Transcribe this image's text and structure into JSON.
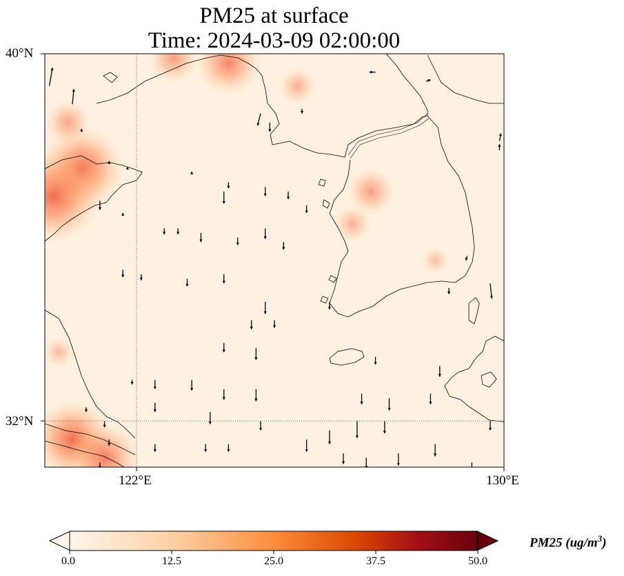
{
  "title": {
    "line1": "PM25 at surface",
    "line2": "Time: 2024-03-09 02:00:00"
  },
  "axes": {
    "lat_labels": [
      "40°N",
      "32°N"
    ],
    "lon_labels": [
      "122°E",
      "130°E"
    ],
    "lat_range": [
      31,
      40
    ],
    "lon_range": [
      120,
      130
    ],
    "gridlines": {
      "lat": 32,
      "lon": 122
    }
  },
  "colorbar": {
    "title": "PM25 (ug/m",
    "title_sup": "3",
    "title_close": ")",
    "ticks": [
      "0.0",
      "12.5",
      "25.0",
      "37.5",
      "50.0"
    ],
    "range": [
      0,
      50
    ],
    "colors": [
      "#fff5eb",
      "#fdd1a5",
      "#fd8d3c",
      "#d94801",
      "#a50f15",
      "#67000d"
    ]
  },
  "map": {
    "background_color": "#fff1e1",
    "pm25_hotspots": [
      {
        "lon": 120.8,
        "lat": 37.5,
        "value": 28
      },
      {
        "lon": 120.2,
        "lat": 36.9,
        "value": 32
      },
      {
        "lon": 120.5,
        "lat": 38.5,
        "value": 12
      },
      {
        "lon": 124.0,
        "lat": 39.8,
        "value": 20
      },
      {
        "lon": 122.8,
        "lat": 39.9,
        "value": 14
      },
      {
        "lon": 127.1,
        "lat": 37.0,
        "value": 13
      },
      {
        "lon": 126.7,
        "lat": 36.3,
        "value": 9
      },
      {
        "lon": 120.6,
        "lat": 31.6,
        "value": 26
      },
      {
        "lon": 121.3,
        "lat": 31.2,
        "value": 22
      },
      {
        "lon": 125.5,
        "lat": 39.3,
        "value": 9
      },
      {
        "lon": 120.3,
        "lat": 33.5,
        "value": 6
      },
      {
        "lon": 128.5,
        "lat": 35.5,
        "value": 5
      }
    ],
    "wind_vectors": [
      {
        "lon": 120.1,
        "lat": 39.3,
        "u": 0.2,
        "v": 1.2
      },
      {
        "lon": 120.6,
        "lat": 38.9,
        "u": 0.1,
        "v": 1.0
      },
      {
        "lon": 127.2,
        "lat": 39.6,
        "u": -0.4,
        "v": 0.0
      },
      {
        "lon": 128.3,
        "lat": 39.4,
        "u": 0.3,
        "v": 0.1
      },
      {
        "lon": 124.7,
        "lat": 38.7,
        "u": -0.2,
        "v": -0.8
      },
      {
        "lon": 124.9,
        "lat": 38.5,
        "u": 0.0,
        "v": -0.6
      },
      {
        "lon": 125.6,
        "lat": 38.8,
        "u": 0.0,
        "v": -0.3
      },
      {
        "lon": 120.8,
        "lat": 38.3,
        "u": 0.0,
        "v": 0.2
      },
      {
        "lon": 121.4,
        "lat": 37.6,
        "u": 0.0,
        "v": 0.2
      },
      {
        "lon": 129.9,
        "lat": 38.1,
        "u": 0.1,
        "v": 0.5
      },
      {
        "lon": 129.9,
        "lat": 37.9,
        "u": 0.0,
        "v": 0.4
      },
      {
        "lon": 121.8,
        "lat": 37.5,
        "u": 0.0,
        "v": 0.1
      },
      {
        "lon": 123.2,
        "lat": 37.4,
        "u": 0.0,
        "v": 0.1
      },
      {
        "lon": 124.0,
        "lat": 37.2,
        "u": 0.0,
        "v": -0.4
      },
      {
        "lon": 124.8,
        "lat": 37.1,
        "u": 0.0,
        "v": -0.6
      },
      {
        "lon": 125.3,
        "lat": 37.0,
        "u": 0.0,
        "v": -0.5
      },
      {
        "lon": 125.7,
        "lat": 36.7,
        "u": 0.0,
        "v": -0.5
      },
      {
        "lon": 123.9,
        "lat": 37.0,
        "u": 0.0,
        "v": -0.8
      },
      {
        "lon": 121.2,
        "lat": 36.8,
        "u": 0.0,
        "v": -0.6
      },
      {
        "lon": 121.7,
        "lat": 36.5,
        "u": 0.0,
        "v": 0.1
      },
      {
        "lon": 122.6,
        "lat": 36.2,
        "u": 0.0,
        "v": -0.4
      },
      {
        "lon": 122.9,
        "lat": 36.2,
        "u": 0.0,
        "v": -0.4
      },
      {
        "lon": 123.4,
        "lat": 36.1,
        "u": 0.0,
        "v": -0.6
      },
      {
        "lon": 124.2,
        "lat": 36.0,
        "u": 0.0,
        "v": -0.5
      },
      {
        "lon": 124.8,
        "lat": 36.2,
        "u": 0.0,
        "v": -0.7
      },
      {
        "lon": 125.2,
        "lat": 35.9,
        "u": 0.0,
        "v": -0.5
      },
      {
        "lon": 129.2,
        "lat": 35.6,
        "u": -0.1,
        "v": -0.3
      },
      {
        "lon": 121.7,
        "lat": 35.3,
        "u": 0.0,
        "v": -0.5
      },
      {
        "lon": 122.1,
        "lat": 35.2,
        "u": 0.0,
        "v": -0.4
      },
      {
        "lon": 123.1,
        "lat": 35.1,
        "u": 0.0,
        "v": -0.5
      },
      {
        "lon": 123.9,
        "lat": 35.2,
        "u": 0.0,
        "v": -0.6
      },
      {
        "lon": 124.8,
        "lat": 34.6,
        "u": 0.0,
        "v": -0.8
      },
      {
        "lon": 126.2,
        "lat": 34.6,
        "u": 0.0,
        "v": -0.5
      },
      {
        "lon": 128.8,
        "lat": 34.9,
        "u": 0.0,
        "v": -0.4
      },
      {
        "lon": 129.7,
        "lat": 35.0,
        "u": 0.1,
        "v": -1.0
      },
      {
        "lon": 124.5,
        "lat": 34.2,
        "u": 0.0,
        "v": -0.6
      },
      {
        "lon": 125.0,
        "lat": 34.2,
        "u": 0.0,
        "v": -0.5
      },
      {
        "lon": 123.9,
        "lat": 33.7,
        "u": 0.0,
        "v": -0.6
      },
      {
        "lon": 124.6,
        "lat": 33.6,
        "u": 0.0,
        "v": -0.8
      },
      {
        "lon": 127.2,
        "lat": 33.4,
        "u": 0.0,
        "v": -0.5
      },
      {
        "lon": 128.6,
        "lat": 33.2,
        "u": 0.0,
        "v": -0.7
      },
      {
        "lon": 121.9,
        "lat": 32.9,
        "u": 0.0,
        "v": -0.3
      },
      {
        "lon": 122.4,
        "lat": 32.9,
        "u": 0.0,
        "v": -0.6
      },
      {
        "lon": 123.2,
        "lat": 32.9,
        "u": 0.0,
        "v": -0.7
      },
      {
        "lon": 123.9,
        "lat": 32.7,
        "u": 0.0,
        "v": -0.7
      },
      {
        "lon": 124.6,
        "lat": 32.7,
        "u": 0.0,
        "v": -0.8
      },
      {
        "lon": 126.9,
        "lat": 32.6,
        "u": 0.0,
        "v": -0.7
      },
      {
        "lon": 127.5,
        "lat": 32.5,
        "u": 0.0,
        "v": -0.8
      },
      {
        "lon": 128.4,
        "lat": 32.6,
        "u": 0.0,
        "v": -0.7
      },
      {
        "lon": 122.4,
        "lat": 32.4,
        "u": 0.0,
        "v": -0.6
      },
      {
        "lon": 120.9,
        "lat": 32.3,
        "u": 0.0,
        "v": -0.3
      },
      {
        "lon": 121.3,
        "lat": 32.0,
        "u": 0.0,
        "v": -0.4
      },
      {
        "lon": 123.6,
        "lat": 32.2,
        "u": 0.0,
        "v": -0.8
      },
      {
        "lon": 124.7,
        "lat": 32.0,
        "u": 0.0,
        "v": -0.6
      },
      {
        "lon": 126.8,
        "lat": 32.0,
        "u": 0.0,
        "v": -1.1
      },
      {
        "lon": 127.4,
        "lat": 32.0,
        "u": 0.0,
        "v": -0.8
      },
      {
        "lon": 129.7,
        "lat": 32.0,
        "u": 0.0,
        "v": -0.6
      },
      {
        "lon": 121.4,
        "lat": 31.6,
        "u": 0.0,
        "v": -0.4
      },
      {
        "lon": 122.4,
        "lat": 31.5,
        "u": 0.0,
        "v": -0.5
      },
      {
        "lon": 123.5,
        "lat": 31.5,
        "u": 0.0,
        "v": -0.5
      },
      {
        "lon": 124.0,
        "lat": 31.5,
        "u": 0.0,
        "v": -0.5
      },
      {
        "lon": 125.7,
        "lat": 31.6,
        "u": 0.0,
        "v": -0.8
      },
      {
        "lon": 126.2,
        "lat": 31.8,
        "u": 0.0,
        "v": -0.9
      },
      {
        "lon": 127.7,
        "lat": 31.3,
        "u": 0.0,
        "v": -0.8
      },
      {
        "lon": 128.5,
        "lat": 31.5,
        "u": 0.0,
        "v": -0.8
      },
      {
        "lon": 121.2,
        "lat": 31.1,
        "u": 0.0,
        "v": -0.4
      },
      {
        "lon": 124.2,
        "lat": 31.0,
        "u": 0.0,
        "v": -0.6
      },
      {
        "lon": 126.5,
        "lat": 31.3,
        "u": 0.0,
        "v": -0.7
      },
      {
        "lon": 127.0,
        "lat": 31.2,
        "u": 0.0,
        "v": -0.7
      },
      {
        "lon": 129.3,
        "lat": 31.1,
        "u": 0.0,
        "v": -0.7
      }
    ]
  }
}
